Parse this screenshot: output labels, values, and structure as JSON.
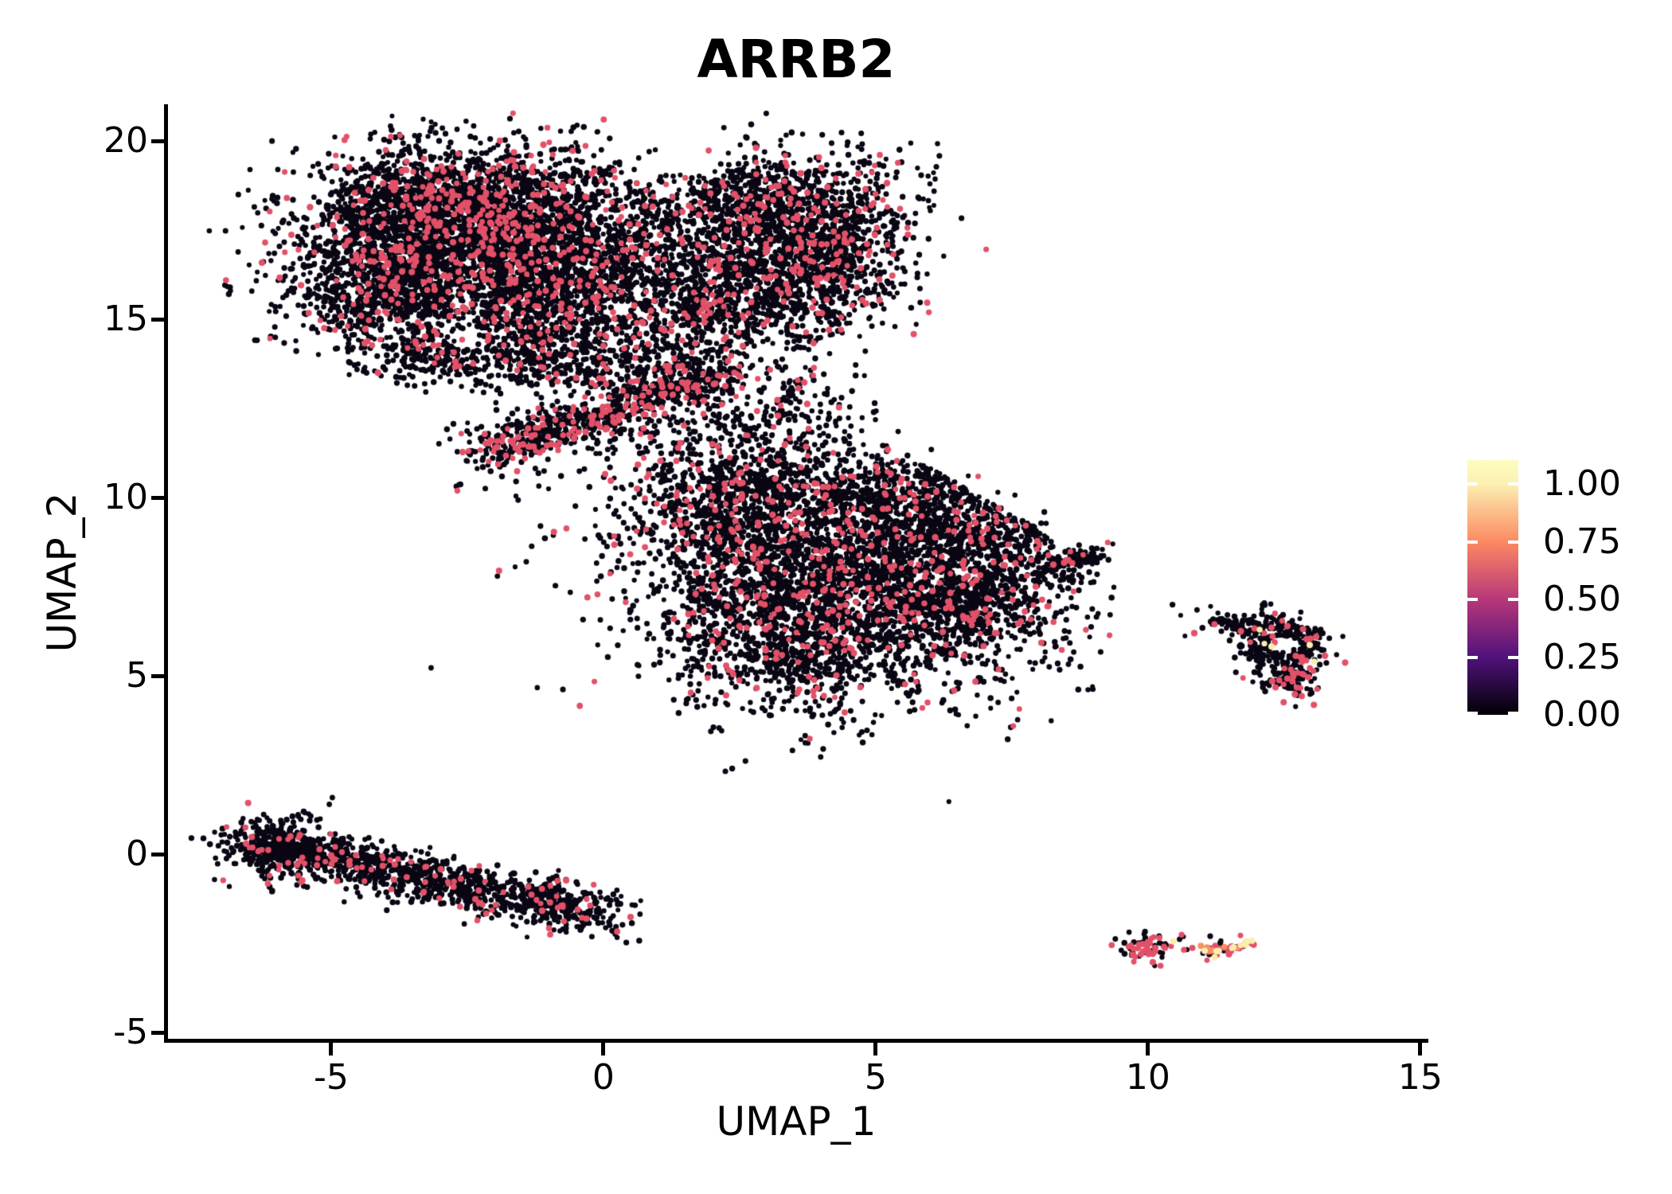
{
  "chart_data": {
    "type": "scatter",
    "title": "ARRB2",
    "xlabel": "UMAP_1",
    "ylabel": "UMAP_2",
    "xlim": [
      -8.01,
      15.09
    ],
    "ylim": [
      -5.22,
      21.03
    ],
    "x_ticks": [
      -5,
      0,
      5,
      10,
      15
    ],
    "y_ticks": [
      -5,
      0,
      5,
      10,
      15,
      20
    ],
    "grid": false,
    "background": "#ffffff",
    "legend": {
      "position": "right",
      "colormap": "magma",
      "tick_labels": [
        "1.00",
        "0.75",
        "0.50",
        "0.25",
        "0.00"
      ],
      "tick_values": [
        1.0,
        0.75,
        0.5,
        0.25,
        0.0
      ],
      "vmax_display": 1.104,
      "stops": [
        {
          "v": 0.0,
          "color": "#000004"
        },
        {
          "v": 0.25,
          "color": "#51127c"
        },
        {
          "v": 0.5,
          "color": "#b73779"
        },
        {
          "v": 0.75,
          "color": "#fc8961"
        },
        {
          "v": 1.0,
          "color": "#fcf0b2"
        },
        {
          "v": 1.104,
          "color": "#fcfdbf"
        }
      ]
    },
    "point_levels": {
      "zero": {
        "value": 0.0,
        "color": "#0a0613"
      },
      "low": {
        "value": 0.65,
        "color": "#e25168"
      },
      "mid": {
        "value": 0.85,
        "color": "#f5935f"
      },
      "high": {
        "value": 1.0,
        "color": "#faeeae"
      }
    },
    "n_points_approx": 18000,
    "clusters": [
      {
        "name": "top-left-core",
        "type": "gauss",
        "cx": -2.6,
        "cy": 17.2,
        "sx": 1.5,
        "sy": 1.25,
        "n": 2600,
        "low": 0.1
      },
      {
        "name": "top-left-east",
        "type": "gauss",
        "cx": -0.9,
        "cy": 16.2,
        "sx": 1.05,
        "sy": 1.3,
        "n": 1400,
        "low": 0.1
      },
      {
        "name": "top-left-west-bulge",
        "type": "gauss",
        "cx": -4.15,
        "cy": 15.7,
        "sx": 0.8,
        "sy": 0.95,
        "n": 650,
        "low": 0.08
      },
      {
        "name": "top-left-crown",
        "type": "gauss",
        "cx": -2.9,
        "cy": 18.4,
        "sx": 1.15,
        "sy": 0.7,
        "n": 750,
        "low": 0.12
      },
      {
        "name": "top-left-bump-west",
        "type": "gauss",
        "cx": -3.35,
        "cy": 13.95,
        "sx": 0.55,
        "sy": 0.4,
        "n": 170,
        "low": 0.08
      },
      {
        "name": "top-left-bump-east",
        "type": "gauss",
        "cx": -1.6,
        "cy": 13.9,
        "sx": 0.5,
        "sy": 0.38,
        "n": 130,
        "low": 0.08
      },
      {
        "name": "top-right-core",
        "type": "gauss",
        "cx": 2.9,
        "cy": 17.3,
        "sx": 1.35,
        "sy": 1.15,
        "n": 1700,
        "low": 0.1
      },
      {
        "name": "top-right-south",
        "type": "gauss",
        "cx": 2.2,
        "cy": 15.4,
        "sx": 0.9,
        "sy": 0.8,
        "n": 550,
        "low": 0.1
      },
      {
        "name": "top-right-east-bump",
        "type": "gauss",
        "cx": 4.25,
        "cy": 16.6,
        "sx": 0.55,
        "sy": 0.85,
        "n": 300,
        "low": 0.1
      },
      {
        "name": "top-right-crown",
        "type": "gauss",
        "cx": 3.4,
        "cy": 18.6,
        "sx": 0.95,
        "sy": 0.5,
        "n": 220,
        "low": 0.12
      },
      {
        "name": "neck-streak",
        "type": "band",
        "x1": -2.3,
        "y1": 11.25,
        "x2": 2.3,
        "y2": 13.45,
        "sigma": 0.27,
        "n": 620,
        "low": 0.22
      },
      {
        "name": "neck-halo",
        "type": "band",
        "x1": -2.2,
        "y1": 11.3,
        "x2": 2.2,
        "y2": 13.4,
        "sigma": 0.75,
        "n": 250,
        "low": 0.12
      },
      {
        "name": "neck-drip",
        "type": "gauss",
        "cx": 0.3,
        "cy": 13.7,
        "sx": 1.05,
        "sy": 0.5,
        "n": 260,
        "low": 0.1
      },
      {
        "name": "bridge-sparse",
        "type": "gauss",
        "cx": 2.3,
        "cy": 11.7,
        "sx": 1.15,
        "sy": 1.0,
        "n": 250,
        "low": 0.12
      },
      {
        "name": "bridge-knot",
        "type": "gauss",
        "cx": 3.6,
        "cy": 12.7,
        "sx": 0.6,
        "sy": 0.5,
        "n": 90,
        "low": 0.1
      },
      {
        "name": "bridge-lower",
        "type": "gauss",
        "cx": 1.6,
        "cy": 9.7,
        "sx": 0.6,
        "sy": 0.75,
        "n": 130,
        "low": 0.08
      },
      {
        "name": "middle-core",
        "type": "gauss",
        "cx": 4.3,
        "cy": 8.0,
        "sx": 1.9,
        "sy": 1.7,
        "n": 3200,
        "low": 0.095,
        "clip": "mid"
      },
      {
        "name": "middle-east",
        "type": "gauss",
        "cx": 6.3,
        "cy": 7.6,
        "sx": 1.2,
        "sy": 1.3,
        "n": 1050,
        "low": 0.095,
        "clip": "mid"
      },
      {
        "name": "middle-northwest",
        "type": "gauss",
        "cx": 2.6,
        "cy": 9.9,
        "sx": 0.9,
        "sy": 0.95,
        "n": 480,
        "low": 0.095
      },
      {
        "name": "middle-southwest",
        "type": "gauss",
        "cx": 3.2,
        "cy": 5.6,
        "sx": 1.0,
        "sy": 0.7,
        "n": 430,
        "low": 0.09
      },
      {
        "name": "middle-north-edge",
        "type": "gauss",
        "cx": 5.5,
        "cy": 10.2,
        "sx": 1.0,
        "sy": 0.55,
        "n": 330,
        "low": 0.09,
        "clip": "mid"
      },
      {
        "name": "middle-ne-shoulder",
        "type": "gauss",
        "cx": 7.3,
        "cy": 9.2,
        "sx": 0.6,
        "sy": 0.5,
        "n": 200,
        "low": 0.09,
        "clip": "mid"
      },
      {
        "name": "middle-east-tail",
        "type": "band",
        "x1": 8.15,
        "y1": 8.1,
        "x2": 9.0,
        "y2": 8.3,
        "sigma": 0.17,
        "n": 110,
        "low": 0.05
      },
      {
        "name": "right-ring",
        "type": "ring",
        "cx": 12.5,
        "cy": 5.85,
        "r0": 0.27,
        "spread": 0.3,
        "rx": 1.15,
        "n": 300,
        "low": 0.09,
        "high": 0.015
      },
      {
        "name": "right-south-lump",
        "type": "gauss",
        "cx": 12.6,
        "cy": 4.85,
        "sx": 0.26,
        "sy": 0.33,
        "n": 95,
        "low": 0.22
      },
      {
        "name": "right-arm",
        "type": "band",
        "x1": 11.15,
        "y1": 6.55,
        "x2": 12.05,
        "y2": 6.35,
        "sigma": 0.13,
        "n": 70,
        "low": 0.04
      },
      {
        "name": "sliver-band",
        "type": "band",
        "x1": -6.4,
        "y1": 0.35,
        "x2": 0.1,
        "y2": -1.75,
        "sigma": 0.34,
        "n": 1300,
        "low": 0.075
      },
      {
        "name": "sliver-head",
        "type": "gauss",
        "cx": -5.9,
        "cy": 0.1,
        "sx": 0.5,
        "sy": 0.45,
        "n": 280,
        "low": 0.075
      },
      {
        "name": "isle-west",
        "type": "gauss",
        "cx": 9.98,
        "cy": -2.62,
        "sx": 0.26,
        "sy": 0.17,
        "n": 68,
        "low": 0.52,
        "high": 0.03
      },
      {
        "name": "isle-east",
        "type": "band",
        "x1": 11.05,
        "y1": -2.72,
        "x2": 11.95,
        "y2": -2.5,
        "sigma": 0.09,
        "n": 62,
        "low": 0.5,
        "mid": 0.08,
        "high": 0.18
      }
    ],
    "stray_points": [
      {
        "x": 6.68,
        "y": 3.6,
        "level": "zero"
      },
      {
        "x": -3.6,
        "y": 13.15,
        "level": "zero"
      },
      {
        "x": -4.35,
        "y": 13.5,
        "level": "zero"
      },
      {
        "x": -2.2,
        "y": 12.95,
        "level": "zero"
      },
      {
        "x": -0.95,
        "y": 12.2,
        "level": "zero"
      },
      {
        "x": 0.2,
        "y": 10.55,
        "level": "zero"
      },
      {
        "x": 0.85,
        "y": 10.2,
        "level": "zero"
      },
      {
        "x": -0.35,
        "y": 10.8,
        "level": "zero"
      },
      {
        "x": 1.3,
        "y": 13.9,
        "level": "low"
      },
      {
        "x": 9.72,
        "y": -2.82,
        "level": "low"
      },
      {
        "x": 10.66,
        "y": -2.68,
        "level": "low"
      },
      {
        "x": 10.9,
        "y": 6.85,
        "level": "zero"
      },
      {
        "x": 11.0,
        "y": 6.35,
        "level": "zero"
      },
      {
        "x": 10.85,
        "y": 6.2,
        "level": "low"
      },
      {
        "x": 11.32,
        "y": 6.6,
        "level": "zero"
      },
      {
        "x": 11.15,
        "y": 6.95,
        "level": "zero"
      },
      {
        "x": 12.97,
        "y": 5.87,
        "level": "high"
      },
      {
        "x": 10.45,
        "y": 7.0,
        "level": "zero"
      },
      {
        "x": 10.6,
        "y": 6.7,
        "level": "zero"
      }
    ]
  }
}
